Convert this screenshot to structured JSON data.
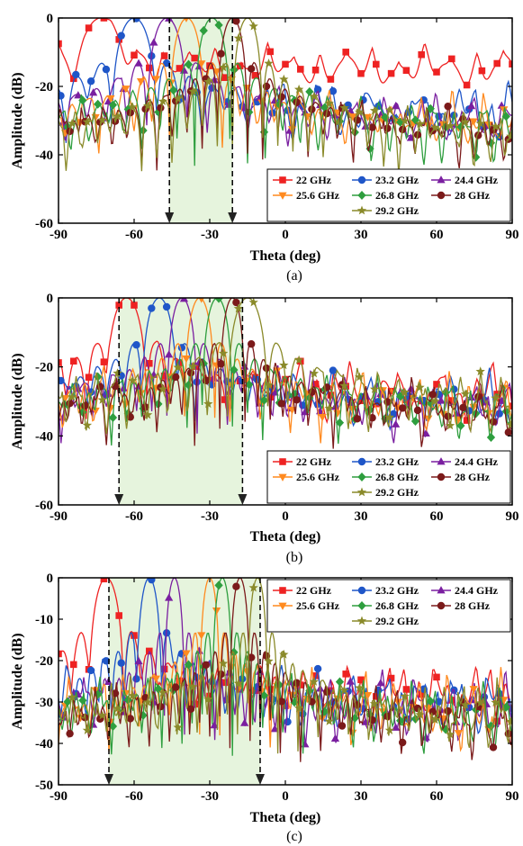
{
  "chart_data": [
    {
      "type": "line",
      "panel_label": "(a)",
      "xlabel": "Theta (deg)",
      "ylabel": "Amplitude (dB)",
      "xlim": [
        -90,
        90
      ],
      "ylim": [
        -60,
        0
      ],
      "xticks": [
        -90,
        -60,
        -30,
        0,
        30,
        60,
        90
      ],
      "yticks": [
        0,
        -20,
        -40,
        -60
      ],
      "shaded_region": [
        -46,
        -21
      ],
      "markers_at": [
        -46,
        -21
      ],
      "legend_location": "bottom-right",
      "series": [
        {
          "name": "22 GHz",
          "color": "#ee2222",
          "marker": "square",
          "peak": -73,
          "width": 11,
          "floor": -10,
          "floorAmp": 3,
          "wobble": 0.55
        },
        {
          "name": "23.2 GHz",
          "color": "#1f56c8",
          "marker": "circle",
          "peak": -60,
          "width": 9,
          "floor": -24,
          "floorAmp": 7,
          "wobble": 0.9
        },
        {
          "name": "24.4 GHz",
          "color": "#7a1fa0",
          "marker": "triangle-up",
          "peak": -47,
          "width": 8,
          "floor": -27,
          "floorAmp": 7,
          "wobble": 1.1
        },
        {
          "name": "25.6 GHz",
          "color": "#ff8a1f",
          "marker": "triangle-down",
          "peak": -39,
          "width": 7,
          "floor": -28,
          "floorAmp": 8,
          "wobble": 1.4
        },
        {
          "name": "26.8 GHz",
          "color": "#2e9e3e",
          "marker": "diamond",
          "peak": -29,
          "width": 7,
          "floor": -30,
          "floorAmp": 8,
          "wobble": 1.7
        },
        {
          "name": "28 GHz",
          "color": "#7b1a1a",
          "marker": "circle",
          "peak": -21,
          "width": 6,
          "floor": -32,
          "floorAmp": 8,
          "wobble": 2.0
        },
        {
          "name": "29.2 GHz",
          "color": "#8a8a2a",
          "marker": "star",
          "peak": -15,
          "width": 6,
          "floor": -33,
          "floorAmp": 8,
          "wobble": 2.3
        }
      ]
    },
    {
      "type": "line",
      "panel_label": "(b)",
      "xlabel": "Theta (deg)",
      "ylabel": "Amplitude (dB)",
      "xlim": [
        -90,
        90
      ],
      "ylim": [
        -60,
        0
      ],
      "xticks": [
        -90,
        -60,
        -30,
        0,
        30,
        60,
        90
      ],
      "yticks": [
        0,
        -20,
        -40,
        -60
      ],
      "shaded_region": [
        -66,
        -17
      ],
      "markers_at": [
        -66,
        -17
      ],
      "legend_location": "bottom-right",
      "series": [
        {
          "name": "22 GHz",
          "color": "#ee2222",
          "marker": "square",
          "peak": -63,
          "width": 8,
          "floor": -24,
          "floorAmp": 7,
          "wobble": 0.9
        },
        {
          "name": "23.2 GHz",
          "color": "#1f56c8",
          "marker": "circle",
          "peak": -50,
          "width": 7,
          "floor": -27,
          "floorAmp": 7,
          "wobble": 1.1
        },
        {
          "name": "24.4 GHz",
          "color": "#7a1fa0",
          "marker": "triangle-up",
          "peak": -41,
          "width": 6,
          "floor": -28,
          "floorAmp": 8,
          "wobble": 1.3
        },
        {
          "name": "25.6 GHz",
          "color": "#ff8a1f",
          "marker": "triangle-down",
          "peak": -34,
          "width": 6,
          "floor": -28,
          "floorAmp": 8,
          "wobble": 1.5
        },
        {
          "name": "26.8 GHz",
          "color": "#2e9e3e",
          "marker": "diamond",
          "peak": -27,
          "width": 6,
          "floor": -29,
          "floorAmp": 8,
          "wobble": 1.7
        },
        {
          "name": "28 GHz",
          "color": "#7b1a1a",
          "marker": "circle",
          "peak": -21,
          "width": 5,
          "floor": -30,
          "floorAmp": 8,
          "wobble": 1.9
        },
        {
          "name": "29.2 GHz",
          "color": "#8a8a2a",
          "marker": "star",
          "peak": -15,
          "width": 8,
          "floor": -27,
          "floorAmp": 6,
          "wobble": 2.1
        }
      ]
    },
    {
      "type": "line",
      "panel_label": "(c)",
      "xlabel": "Theta (deg)",
      "ylabel": "Amplitude (dB)",
      "xlim": [
        -90,
        90
      ],
      "ylim": [
        -50,
        0
      ],
      "xticks": [
        -90,
        -60,
        -30,
        0,
        30,
        60,
        90
      ],
      "yticks": [
        0,
        -10,
        -20,
        -30,
        -40,
        -50
      ],
      "shaded_region": [
        -70,
        -10
      ],
      "markers_at": [
        -70,
        -10
      ],
      "legend_location": "top-right",
      "series": [
        {
          "name": "22 GHz",
          "color": "#ee2222",
          "marker": "square",
          "peak": -71,
          "width": 7,
          "floor": -24,
          "floorAmp": 5,
          "wobble": 1.0
        },
        {
          "name": "23.2 GHz",
          "color": "#1f56c8",
          "marker": "circle",
          "peak": -54,
          "width": 5,
          "floor": -26,
          "floorAmp": 6,
          "wobble": 1.2
        },
        {
          "name": "24.4 GHz",
          "color": "#7a1fa0",
          "marker": "triangle-up",
          "peak": -44,
          "width": 4,
          "floor": -28,
          "floorAmp": 7,
          "wobble": 1.4
        },
        {
          "name": "25.6 GHz",
          "color": "#ff8a1f",
          "marker": "triangle-down",
          "peak": -30,
          "width": 4,
          "floor": -29,
          "floorAmp": 8,
          "wobble": 1.6
        },
        {
          "name": "26.8 GHz",
          "color": "#2e9e3e",
          "marker": "diamond",
          "peak": -25,
          "width": 4,
          "floor": -30,
          "floorAmp": 7,
          "wobble": 1.8
        },
        {
          "name": "28 GHz",
          "color": "#7b1a1a",
          "marker": "circle",
          "peak": -18,
          "width": 4,
          "floor": -32,
          "floorAmp": 7,
          "wobble": 2.0
        },
        {
          "name": "29.2 GHz",
          "color": "#8a8a2a",
          "marker": "star",
          "peak": -11,
          "width": 4,
          "floor": -30,
          "floorAmp": 7,
          "wobble": 2.2
        }
      ]
    }
  ]
}
